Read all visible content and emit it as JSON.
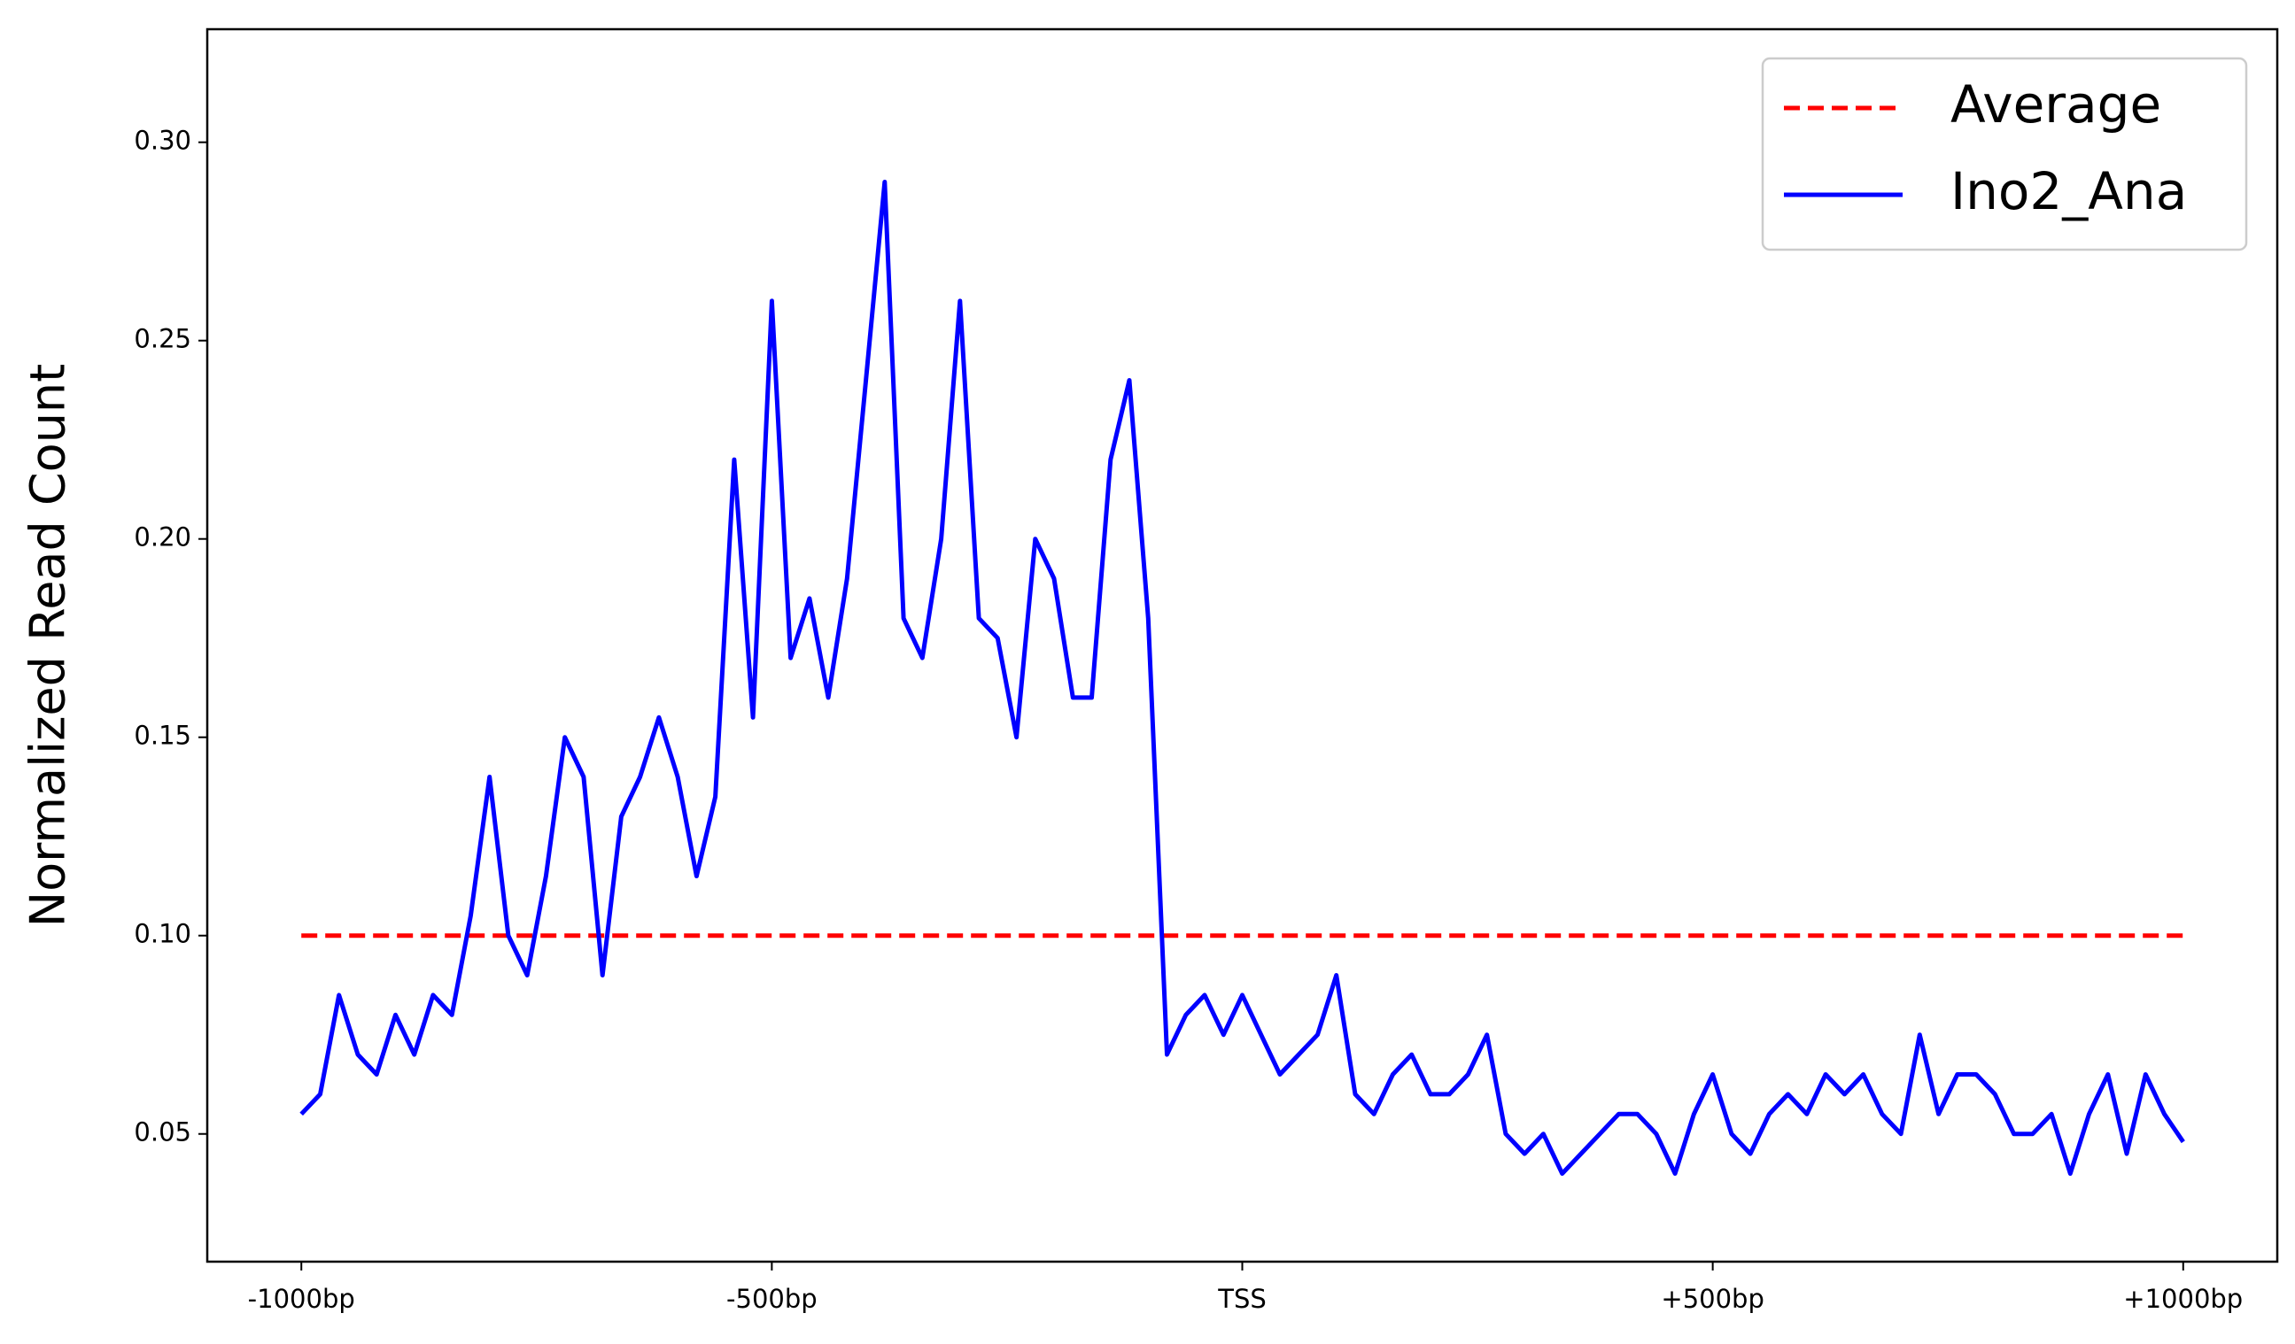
{
  "chart_data": {
    "type": "line",
    "ylabel": "Normalized Read Count",
    "xlim": [
      -1100,
      1100
    ],
    "xticks": [
      {
        "value": -1000,
        "label": "-1000bp"
      },
      {
        "value": -500,
        "label": "-500bp"
      },
      {
        "value": 0,
        "label": "TSS"
      },
      {
        "value": 500,
        "label": "+500bp"
      },
      {
        "value": 1000,
        "label": "+1000bp"
      }
    ],
    "ylim": [
      0.0178,
      0.3285
    ],
    "yticks": [
      {
        "value": 0.05,
        "label": "0.05"
      },
      {
        "value": 0.1,
        "label": "0.10"
      },
      {
        "value": 0.15,
        "label": "0.15"
      },
      {
        "value": 0.2,
        "label": "0.20"
      },
      {
        "value": 0.25,
        "label": "0.25"
      },
      {
        "value": 0.3,
        "label": "0.30"
      }
    ],
    "legend": "upper right",
    "series": [
      {
        "name": "Average",
        "color": "#ff0000",
        "dashed": true,
        "x": [
          -1000,
          1000
        ],
        "values": [
          0.1,
          0.1
        ]
      },
      {
        "name": "Ino2_Ana",
        "color": "#0000ff",
        "dashed": false,
        "x": [
          -1000,
          -980,
          -960,
          -940,
          -920,
          -900,
          -880,
          -860,
          -840,
          -820,
          -800,
          -780,
          -760,
          -740,
          -720,
          -700,
          -680,
          -660,
          -640,
          -620,
          -600,
          -580,
          -560,
          -540,
          -520,
          -500,
          -480,
          -460,
          -440,
          -420,
          -400,
          -380,
          -360,
          -340,
          -320,
          -300,
          -280,
          -260,
          -240,
          -220,
          -200,
          -180,
          -160,
          -140,
          -120,
          -100,
          -80,
          -60,
          -40,
          -20,
          0,
          20,
          40,
          60,
          80,
          100,
          120,
          140,
          160,
          180,
          200,
          220,
          240,
          260,
          280,
          300,
          320,
          340,
          360,
          380,
          400,
          420,
          440,
          460,
          480,
          500,
          520,
          540,
          560,
          580,
          600,
          620,
          640,
          660,
          680,
          700,
          720,
          740,
          760,
          780,
          800,
          820,
          840,
          860,
          880,
          900,
          920,
          940,
          960,
          980,
          1000
        ],
        "values": [
          0.055,
          0.06,
          0.085,
          0.07,
          0.065,
          0.08,
          0.07,
          0.085,
          0.08,
          0.105,
          0.14,
          0.1,
          0.09,
          0.115,
          0.15,
          0.14,
          0.09,
          0.13,
          0.14,
          0.155,
          0.14,
          0.115,
          0.135,
          0.22,
          0.155,
          0.26,
          0.17,
          0.185,
          0.16,
          0.19,
          0.24,
          0.29,
          0.18,
          0.17,
          0.2,
          0.26,
          0.18,
          0.175,
          0.15,
          0.2,
          0.19,
          0.16,
          0.16,
          0.22,
          0.24,
          0.18,
          0.07,
          0.08,
          0.085,
          0.075,
          0.085,
          0.075,
          0.065,
          0.07,
          0.075,
          0.09,
          0.06,
          0.055,
          0.065,
          0.07,
          0.06,
          0.06,
          0.065,
          0.075,
          0.05,
          0.045,
          0.05,
          0.04,
          0.045,
          0.05,
          0.055,
          0.055,
          0.05,
          0.04,
          0.055,
          0.065,
          0.05,
          0.045,
          0.055,
          0.06,
          0.055,
          0.065,
          0.06,
          0.065,
          0.055,
          0.05,
          0.075,
          0.055,
          0.065,
          0.065,
          0.06,
          0.05,
          0.05,
          0.055,
          0.04,
          0.055,
          0.065,
          0.045,
          0.065,
          0.055,
          0.048
        ]
      }
    ]
  }
}
